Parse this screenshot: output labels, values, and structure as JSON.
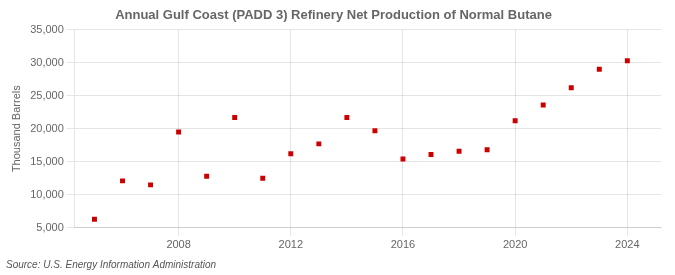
{
  "chart_data": {
    "type": "scatter",
    "title": "Annual Gulf Coast (PADD 3) Refinery Net Production of Normal Butane",
    "ylabel": "Thousand Barrels",
    "annotation": "Source: U.S. Energy Information Administration",
    "x": [
      2005,
      2006,
      2007,
      2008,
      2009,
      2010,
      2011,
      2012,
      2013,
      2014,
      2015,
      2016,
      2017,
      2018,
      2019,
      2020,
      2021,
      2022,
      2023,
      2024
    ],
    "values": [
      6300,
      12100,
      11500,
      19500,
      12800,
      21700,
      12500,
      16200,
      17700,
      21700,
      19700,
      15400,
      16100,
      16600,
      16800,
      21200,
      23600,
      26200,
      29000,
      30300
    ],
    "color": "#cc0000",
    "marker": "square",
    "xlim": [
      2004.3,
      2025.2
    ],
    "xticks": [
      2008,
      2012,
      2016,
      2020,
      2024
    ],
    "ylim": [
      5000,
      35000
    ],
    "yticks": [
      {
        "value": 5000,
        "label": "5,000"
      },
      {
        "value": 10000,
        "label": "10,000"
      },
      {
        "value": 15000,
        "label": "15,000"
      },
      {
        "value": 20000,
        "label": "20,000"
      },
      {
        "value": 25000,
        "label": "25,000"
      },
      {
        "value": 30000,
        "label": "30,000"
      },
      {
        "value": 35000,
        "label": "35,000"
      }
    ],
    "grid": true
  }
}
